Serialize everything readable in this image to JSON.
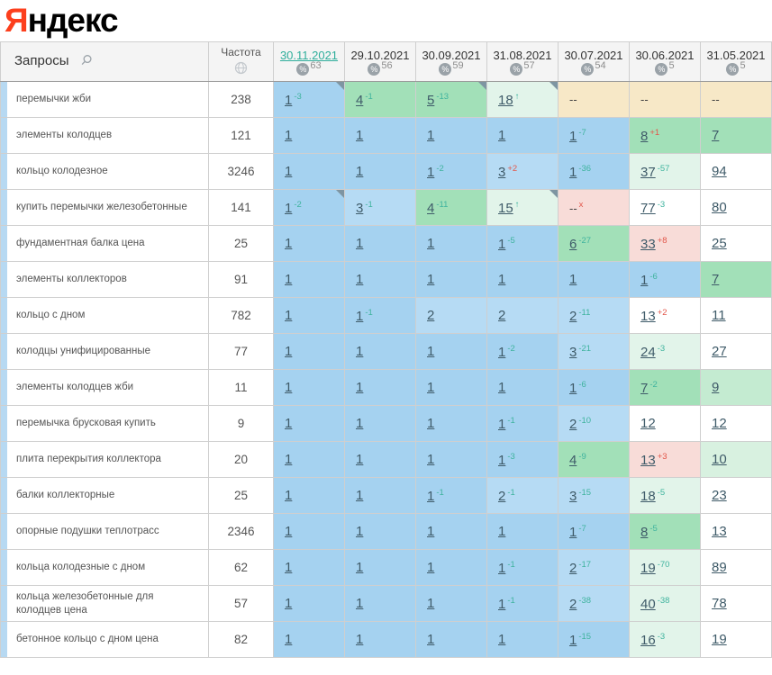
{
  "logo": {
    "ya": "Я",
    "rest": "ндекс"
  },
  "colors": {
    "brand_red": "#fc3f1d",
    "accent_teal": "#2fae9b",
    "delta_up": "#3fb39e",
    "delta_down": "#e2574b",
    "bg_top1": "#a5d2f0",
    "bg_top3": "#b6dbf4",
    "bg_top10": "#a2e0b8",
    "bg_improved": "#e2f4ea",
    "bg_dropped": "#f8dcd8",
    "bg_nodata": "#f7e8c7"
  },
  "table": {
    "queries_header": "Запросы",
    "frequency_header": "Частота",
    "dates": [
      {
        "label": "30.11.2021",
        "percent": "63",
        "selected": true
      },
      {
        "label": "29.10.2021",
        "percent": "56",
        "selected": false
      },
      {
        "label": "30.09.2021",
        "percent": "59",
        "selected": false
      },
      {
        "label": "31.08.2021",
        "percent": "57",
        "selected": false
      },
      {
        "label": "30.07.2021",
        "percent": "54",
        "selected": false
      },
      {
        "label": "30.06.2021",
        "percent": "5",
        "selected": false
      },
      {
        "label": "31.05.2021",
        "percent": "5",
        "selected": false
      }
    ],
    "rows": [
      {
        "keyword": "перемычки жби",
        "frequency": "238",
        "cells": [
          {
            "v": "1",
            "d": "-3",
            "dir": "up",
            "bg": "b1",
            "note": true
          },
          {
            "v": "4",
            "d": "-1",
            "dir": "up",
            "bg": "g1"
          },
          {
            "v": "5",
            "d": "-13",
            "dir": "up",
            "bg": "g1",
            "note": true
          },
          {
            "v": "18",
            "d": "↑",
            "dir": "up",
            "bg": "mint",
            "note": true
          },
          {
            "v": "--",
            "bg": "beige",
            "link": false
          },
          {
            "v": "--",
            "bg": "beige",
            "link": false
          },
          {
            "v": "--",
            "bg": "beige",
            "link": false
          }
        ]
      },
      {
        "keyword": "элементы колодцев",
        "frequency": "121",
        "cells": [
          {
            "v": "1",
            "bg": "b1"
          },
          {
            "v": "1",
            "bg": "b1"
          },
          {
            "v": "1",
            "bg": "b1"
          },
          {
            "v": "1",
            "bg": "b1"
          },
          {
            "v": "1",
            "d": "-7",
            "dir": "up",
            "bg": "b1"
          },
          {
            "v": "8",
            "d": "+1",
            "dir": "down",
            "bg": "g1"
          },
          {
            "v": "7",
            "bg": "g1"
          }
        ]
      },
      {
        "keyword": "кольцо колодезное",
        "frequency": "3246",
        "cells": [
          {
            "v": "1",
            "bg": "b1"
          },
          {
            "v": "1",
            "bg": "b1"
          },
          {
            "v": "1",
            "d": "-2",
            "dir": "up",
            "bg": "b1"
          },
          {
            "v": "3",
            "d": "+2",
            "dir": "down",
            "bg": "b2"
          },
          {
            "v": "1",
            "d": "-36",
            "dir": "up",
            "bg": "b1"
          },
          {
            "v": "37",
            "d": "-57",
            "dir": "up",
            "bg": "mint"
          },
          {
            "v": "94",
            "bg": "white"
          }
        ]
      },
      {
        "keyword": "купить перемычки железобетонные",
        "frequency": "141",
        "cells": [
          {
            "v": "1",
            "d": "-2",
            "dir": "up",
            "bg": "b1",
            "note": true
          },
          {
            "v": "3",
            "d": "-1",
            "dir": "up",
            "bg": "b2"
          },
          {
            "v": "4",
            "d": "-11",
            "dir": "up",
            "bg": "g1"
          },
          {
            "v": "15",
            "d": "↑",
            "dir": "up",
            "bg": "mint",
            "note": true
          },
          {
            "v": "--",
            "d": "x",
            "dir": "down",
            "bg": "pink",
            "link": false
          },
          {
            "v": "77",
            "d": "-3",
            "dir": "up",
            "bg": "white"
          },
          {
            "v": "80",
            "bg": "white"
          }
        ]
      },
      {
        "keyword": "фундаментная балка цена",
        "frequency": "25",
        "cells": [
          {
            "v": "1",
            "bg": "b1"
          },
          {
            "v": "1",
            "bg": "b1"
          },
          {
            "v": "1",
            "bg": "b1"
          },
          {
            "v": "1",
            "d": "-5",
            "dir": "up",
            "bg": "b1"
          },
          {
            "v": "6",
            "d": "-27",
            "dir": "up",
            "bg": "g1"
          },
          {
            "v": "33",
            "d": "+8",
            "dir": "down",
            "bg": "pink"
          },
          {
            "v": "25",
            "bg": "white"
          }
        ]
      },
      {
        "keyword": "элементы коллекторов",
        "frequency": "91",
        "cells": [
          {
            "v": "1",
            "bg": "b1"
          },
          {
            "v": "1",
            "bg": "b1"
          },
          {
            "v": "1",
            "bg": "b1"
          },
          {
            "v": "1",
            "bg": "b1"
          },
          {
            "v": "1",
            "bg": "b1"
          },
          {
            "v": "1",
            "d": "-6",
            "dir": "up",
            "bg": "b1"
          },
          {
            "v": "7",
            "bg": "g1"
          }
        ]
      },
      {
        "keyword": "кольцо с дном",
        "frequency": "782",
        "cells": [
          {
            "v": "1",
            "bg": "b1"
          },
          {
            "v": "1",
            "d": "-1",
            "dir": "up",
            "bg": "b1"
          },
          {
            "v": "2",
            "bg": "b2"
          },
          {
            "v": "2",
            "bg": "b2"
          },
          {
            "v": "2",
            "d": "-11",
            "dir": "up",
            "bg": "b2"
          },
          {
            "v": "13",
            "d": "+2",
            "dir": "down",
            "bg": "white"
          },
          {
            "v": "11",
            "bg": "white"
          }
        ]
      },
      {
        "keyword": "колодцы унифицированные",
        "frequency": "77",
        "cells": [
          {
            "v": "1",
            "bg": "b1"
          },
          {
            "v": "1",
            "bg": "b1"
          },
          {
            "v": "1",
            "bg": "b1"
          },
          {
            "v": "1",
            "d": "-2",
            "dir": "up",
            "bg": "b1"
          },
          {
            "v": "3",
            "d": "-21",
            "dir": "up",
            "bg": "b2"
          },
          {
            "v": "24",
            "d": "-3",
            "dir": "up",
            "bg": "mint"
          },
          {
            "v": "27",
            "bg": "white"
          }
        ]
      },
      {
        "keyword": "элементы колодцев жби",
        "frequency": "11",
        "cells": [
          {
            "v": "1",
            "bg": "b1"
          },
          {
            "v": "1",
            "bg": "b1"
          },
          {
            "v": "1",
            "bg": "b1"
          },
          {
            "v": "1",
            "bg": "b1"
          },
          {
            "v": "1",
            "d": "-6",
            "dir": "up",
            "bg": "b1"
          },
          {
            "v": "7",
            "d": "-2",
            "dir": "up",
            "bg": "g1"
          },
          {
            "v": "9",
            "bg": "g2"
          }
        ]
      },
      {
        "keyword": "перемычка брусковая купить",
        "frequency": "9",
        "cells": [
          {
            "v": "1",
            "bg": "b1"
          },
          {
            "v": "1",
            "bg": "b1"
          },
          {
            "v": "1",
            "bg": "b1"
          },
          {
            "v": "1",
            "d": "-1",
            "dir": "up",
            "bg": "b1"
          },
          {
            "v": "2",
            "d": "-10",
            "dir": "up",
            "bg": "b2"
          },
          {
            "v": "12",
            "bg": "white"
          },
          {
            "v": "12",
            "bg": "white"
          }
        ]
      },
      {
        "keyword": "плита перекрытия коллектора",
        "frequency": "20",
        "cells": [
          {
            "v": "1",
            "bg": "b1"
          },
          {
            "v": "1",
            "bg": "b1"
          },
          {
            "v": "1",
            "bg": "b1"
          },
          {
            "v": "1",
            "d": "-3",
            "dir": "up",
            "bg": "b1"
          },
          {
            "v": "4",
            "d": "-9",
            "dir": "up",
            "bg": "g1"
          },
          {
            "v": "13",
            "d": "+3",
            "dir": "down",
            "bg": "pink"
          },
          {
            "v": "10",
            "bg": "g3"
          }
        ]
      },
      {
        "keyword": "балки коллекторные",
        "frequency": "25",
        "cells": [
          {
            "v": "1",
            "bg": "b1"
          },
          {
            "v": "1",
            "bg": "b1"
          },
          {
            "v": "1",
            "d": "-1",
            "dir": "up",
            "bg": "b1"
          },
          {
            "v": "2",
            "d": "-1",
            "dir": "up",
            "bg": "b2"
          },
          {
            "v": "3",
            "d": "-15",
            "dir": "up",
            "bg": "b2"
          },
          {
            "v": "18",
            "d": "-5",
            "dir": "up",
            "bg": "mint"
          },
          {
            "v": "23",
            "bg": "white"
          }
        ]
      },
      {
        "keyword": "опорные подушки теплотрасс",
        "frequency": "2346",
        "cells": [
          {
            "v": "1",
            "bg": "b1"
          },
          {
            "v": "1",
            "bg": "b1"
          },
          {
            "v": "1",
            "bg": "b1"
          },
          {
            "v": "1",
            "bg": "b1"
          },
          {
            "v": "1",
            "d": "-7",
            "dir": "up",
            "bg": "b1"
          },
          {
            "v": "8",
            "d": "-5",
            "dir": "up",
            "bg": "g1"
          },
          {
            "v": "13",
            "bg": "white"
          }
        ]
      },
      {
        "keyword": "кольца колодезные с дном",
        "frequency": "62",
        "cells": [
          {
            "v": "1",
            "bg": "b1"
          },
          {
            "v": "1",
            "bg": "b1"
          },
          {
            "v": "1",
            "bg": "b1"
          },
          {
            "v": "1",
            "d": "-1",
            "dir": "up",
            "bg": "b1"
          },
          {
            "v": "2",
            "d": "-17",
            "dir": "up",
            "bg": "b2"
          },
          {
            "v": "19",
            "d": "-70",
            "dir": "up",
            "bg": "mint"
          },
          {
            "v": "89",
            "bg": "white"
          }
        ]
      },
      {
        "keyword": "кольца железобетонные для колодцев цена",
        "frequency": "57",
        "cells": [
          {
            "v": "1",
            "bg": "b1"
          },
          {
            "v": "1",
            "bg": "b1"
          },
          {
            "v": "1",
            "bg": "b1"
          },
          {
            "v": "1",
            "d": "-1",
            "dir": "up",
            "bg": "b1"
          },
          {
            "v": "2",
            "d": "-38",
            "dir": "up",
            "bg": "b2"
          },
          {
            "v": "40",
            "d": "-38",
            "dir": "up",
            "bg": "mint"
          },
          {
            "v": "78",
            "bg": "white"
          }
        ]
      },
      {
        "keyword": "бетонное кольцо с дном цена",
        "frequency": "82",
        "cells": [
          {
            "v": "1",
            "bg": "b1"
          },
          {
            "v": "1",
            "bg": "b1"
          },
          {
            "v": "1",
            "bg": "b1"
          },
          {
            "v": "1",
            "bg": "b1"
          },
          {
            "v": "1",
            "d": "-15",
            "dir": "up",
            "bg": "b1"
          },
          {
            "v": "16",
            "d": "-3",
            "dir": "up",
            "bg": "mint"
          },
          {
            "v": "19",
            "bg": "white"
          }
        ]
      }
    ]
  }
}
